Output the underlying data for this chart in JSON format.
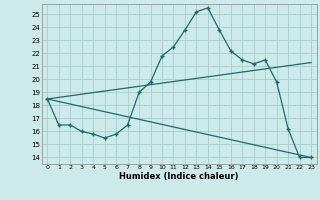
{
  "xlabel": "Humidex (Indice chaleur)",
  "background_color": "#cceaea",
  "grid_color": "#aacccc",
  "line_color": "#1a6b6b",
  "xlim": [
    -0.5,
    23.5
  ],
  "ylim": [
    13.5,
    25.8
  ],
  "yticks": [
    14,
    15,
    16,
    17,
    18,
    19,
    20,
    21,
    22,
    23,
    24,
    25
  ],
  "xticks": [
    0,
    1,
    2,
    3,
    4,
    5,
    6,
    7,
    8,
    9,
    10,
    11,
    12,
    13,
    14,
    15,
    16,
    17,
    18,
    19,
    20,
    21,
    22,
    23
  ],
  "line1_x": [
    0,
    1,
    2,
    3,
    4,
    5,
    6,
    7,
    8,
    9,
    10,
    11,
    12,
    13,
    14,
    15,
    16,
    17,
    18,
    19,
    20,
    21,
    22,
    23
  ],
  "line1_y": [
    18.5,
    16.5,
    16.5,
    16.0,
    15.8,
    15.5,
    15.8,
    16.5,
    19.0,
    19.8,
    21.8,
    22.5,
    23.8,
    25.2,
    25.5,
    23.8,
    22.2,
    21.5,
    21.2,
    21.5,
    19.8,
    16.2,
    14.0,
    14.0
  ],
  "line2_x": [
    0,
    23
  ],
  "line2_y": [
    18.5,
    21.3
  ],
  "line3_x": [
    0,
    23
  ],
  "line3_y": [
    18.5,
    14.0
  ]
}
